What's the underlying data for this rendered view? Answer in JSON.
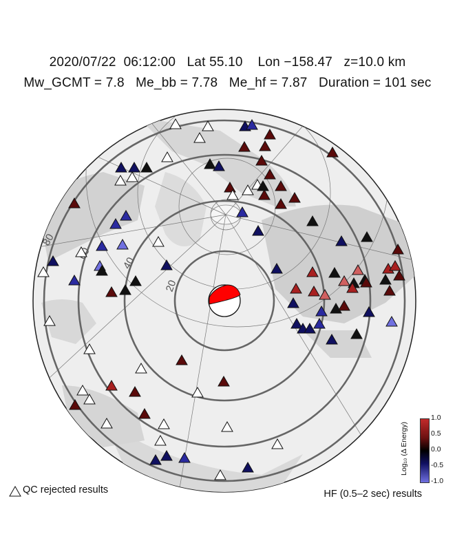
{
  "header": {
    "date": "2020/07/22",
    "time": "06:12:00",
    "lat": "Lat 55.10",
    "lon": "Lon −158.47",
    "depth": "z=10.0 km",
    "mw": "Mw_GCMT = 7.8",
    "me_bb": "Me_bb = 7.78",
    "me_hf": "Me_hf = 7.87",
    "duration": "Duration = 101 sec"
  },
  "map": {
    "distance_ring_labels": [
      "20",
      "40",
      "60",
      "80"
    ],
    "distance_rings_deg": [
      20,
      40,
      60,
      80,
      100
    ],
    "land_color": "#d8d8d8",
    "ocean_color": "#efefef",
    "ring_color": "#666666",
    "beachball": {
      "compression_color": "#ff0000",
      "dilatation_color": "#ffffff"
    }
  },
  "colorbar": {
    "label": "Log₁₀ (Δ Energy)",
    "ticks": [
      "1.0",
      "0.5",
      "0.0",
      "-0.5",
      "-1.0"
    ],
    "high_color": "#c22a2a",
    "mid_color": "#000000",
    "low_color": "#7070e0"
  },
  "legend": {
    "qc_label": "QC rejected results",
    "hf_label": "HF (0.5–2 sec) results"
  }
}
